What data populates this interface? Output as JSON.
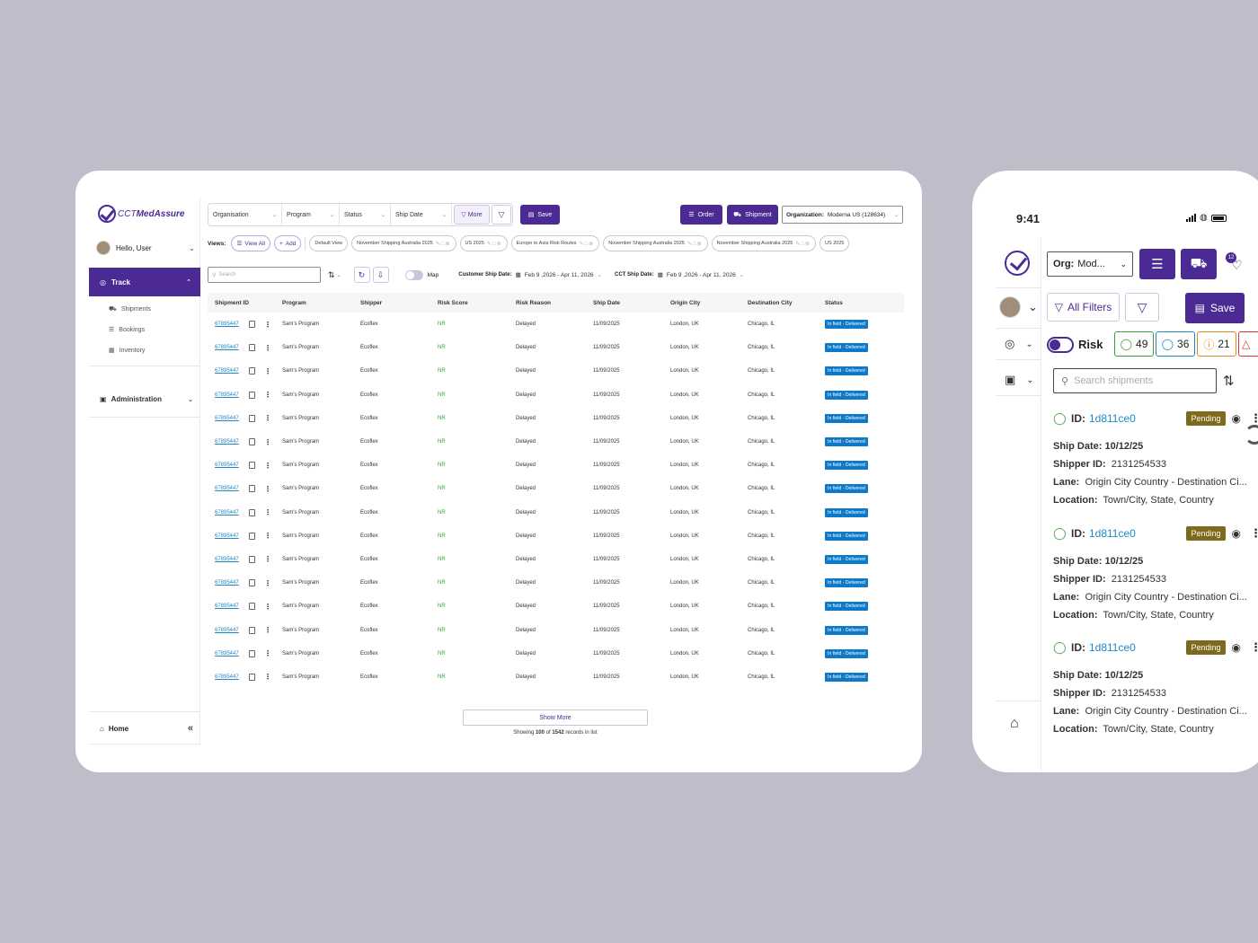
{
  "brand": {
    "prefix": "CCT",
    "name": "MedAssure"
  },
  "sidebar": {
    "greeting": "Hello, User",
    "track": "Track",
    "subitems": [
      "Shipments",
      "Bookings",
      "Inventory"
    ],
    "administration": "Administration",
    "home": "Home"
  },
  "toolbar": {
    "filters": [
      "Organisation",
      "Program",
      "Status",
      "Ship Date"
    ],
    "more": "More",
    "save": "Save",
    "order": "Order",
    "shipment": "Shipment",
    "org_label": "Organization:",
    "org_value": "Moderna US (128634)"
  },
  "views": {
    "label": "Views:",
    "view_all": "View All",
    "add": "Add",
    "items": [
      "Default View",
      "November Shipping Australia 2025",
      "US 2025",
      "Europe to Asia Risk Routes",
      "November Shipping Australia 2025",
      "November Shipping Australia 2025",
      "US 2025"
    ]
  },
  "tools": {
    "search_placeholder": "Search",
    "map": "Map",
    "customer_ship_label": "Customer Ship Date:",
    "customer_ship_value": "Feb 9 ,2026 - Apr 11, 2026",
    "cct_ship_label": "CCT Ship Date:",
    "cct_ship_value": "Feb 9 ,2026 - Apr 11, 2026"
  },
  "table": {
    "headers": [
      "Shipment ID",
      "Program",
      "Shipper",
      "Risk Score",
      "Risk Reason",
      "Ship Date",
      "Origin City",
      "Destination City",
      "Status"
    ],
    "row": {
      "id": "67895447",
      "program": "Sam's Program",
      "shipper": "Ecoflex",
      "risk_score": "NR",
      "risk_reason": "Delayed",
      "ship_date": "11/09/2025",
      "origin": "London, UK",
      "destination": "Chicago, IL",
      "status": "In field - Delivered"
    },
    "visible_rows": 16
  },
  "footer": {
    "show_more": "Show More",
    "records_prefix": "Showing",
    "shown": "100",
    "records_of": "of",
    "total": "1542",
    "records_suffix": "records in list"
  },
  "mobile": {
    "time": "9:41",
    "org_label": "Org:",
    "org_value": "Mod...",
    "notification_count": "12",
    "all_filters": "All Filters",
    "save": "Save",
    "risk": "Risk",
    "risk_counts": [
      "49",
      "36",
      "21"
    ],
    "search_placeholder": "Search shipments",
    "cards": [
      {
        "id_label": "ID:",
        "id": "1d811ce0",
        "status": "Pending",
        "ship_date_label": "Ship Date:",
        "ship_date": "10/12/25",
        "shipper_label": "Shipper ID:",
        "shipper": "2131254533",
        "lane_label": "Lane:",
        "lane": "Origin City Country - Destination Ci...",
        "location_label": "Location:",
        "location": "Town/City, State, Country"
      },
      {
        "id_label": "ID:",
        "id": "1d811ce0",
        "status": "Pending",
        "ship_date_label": "Ship Date:",
        "ship_date": "10/12/25",
        "shipper_label": "Shipper ID:",
        "shipper": "2131254533",
        "lane_label": "Lane:",
        "lane": "Origin City Country - Destination Ci...",
        "location_label": "Location:",
        "location": "Town/City, State, Country"
      },
      {
        "id_label": "ID:",
        "id": "1d811ce0",
        "status": "Pending",
        "ship_date_label": "Ship Date:",
        "ship_date": "10/12/25",
        "shipper_label": "Shipper ID:",
        "shipper": "2131254533",
        "lane_label": "Lane:",
        "lane": "Origin City Country - Destination Ci...",
        "location_label": "Location:",
        "location": "Town/City, State, Country"
      }
    ]
  },
  "colors": {
    "brand": "#4b2a94",
    "link": "#1f88c8",
    "status": "#0c79c9",
    "pending": "#7d6a1d",
    "risk_low": "#3aa040",
    "risk_mid": "#1f88c8",
    "risk_warn": "#e08a1e"
  }
}
